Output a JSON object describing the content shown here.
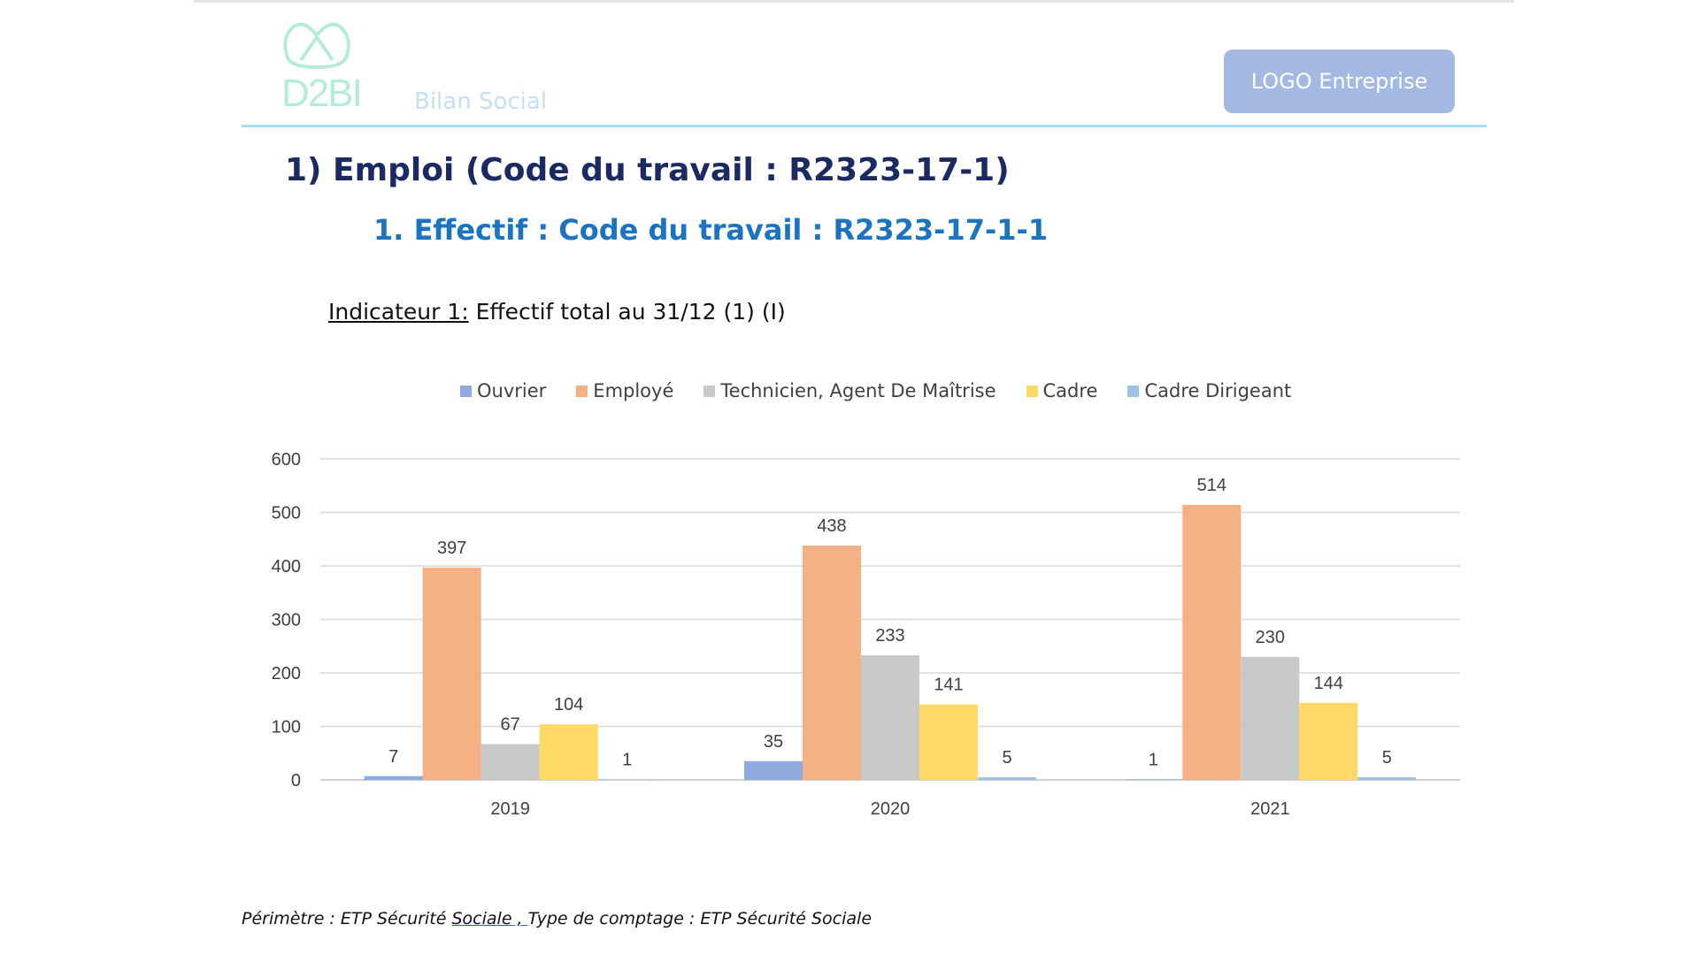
{
  "header": {
    "logo_text": "D2BI",
    "subtitle": "Bilan Social",
    "company_logo_label": "LOGO Entreprise"
  },
  "title": "1) Emploi (Code du travail : R2323-17-1)",
  "section": "1.  Effectif : Code du travail : R2323-17-1-1",
  "indicator": {
    "label": "Indicateur 1:",
    "text": " Effectif total au 31/12 (1) (I)"
  },
  "footer": {
    "part1": "Périmètre : ETP Sécurité ",
    "part2": "Sociale , ",
    "part3": "Type de comptage : ETP Sécurité Sociale"
  },
  "chart_data": {
    "type": "bar",
    "title": "",
    "categories": [
      "2019",
      "2020",
      "2021"
    ],
    "series": [
      {
        "name": "Ouvrier",
        "color": "#8faadc",
        "values": [
          7,
          35,
          1
        ]
      },
      {
        "name": "Employé",
        "color": "#f4b183",
        "values": [
          397,
          438,
          514
        ]
      },
      {
        "name": "Technicien, Agent De Maîtrise",
        "color": "#c9c9c9",
        "values": [
          67,
          233,
          230
        ]
      },
      {
        "name": "Cadre",
        "color": "#ffd966",
        "values": [
          104,
          141,
          144
        ]
      },
      {
        "name": "Cadre Dirigeant",
        "color": "#9dc3e6",
        "values": [
          1,
          5,
          5
        ]
      }
    ],
    "ylim": [
      0,
      600
    ],
    "yticks": [
      0,
      100,
      200,
      300,
      400,
      500,
      600
    ],
    "grid": true,
    "legend": "top"
  }
}
